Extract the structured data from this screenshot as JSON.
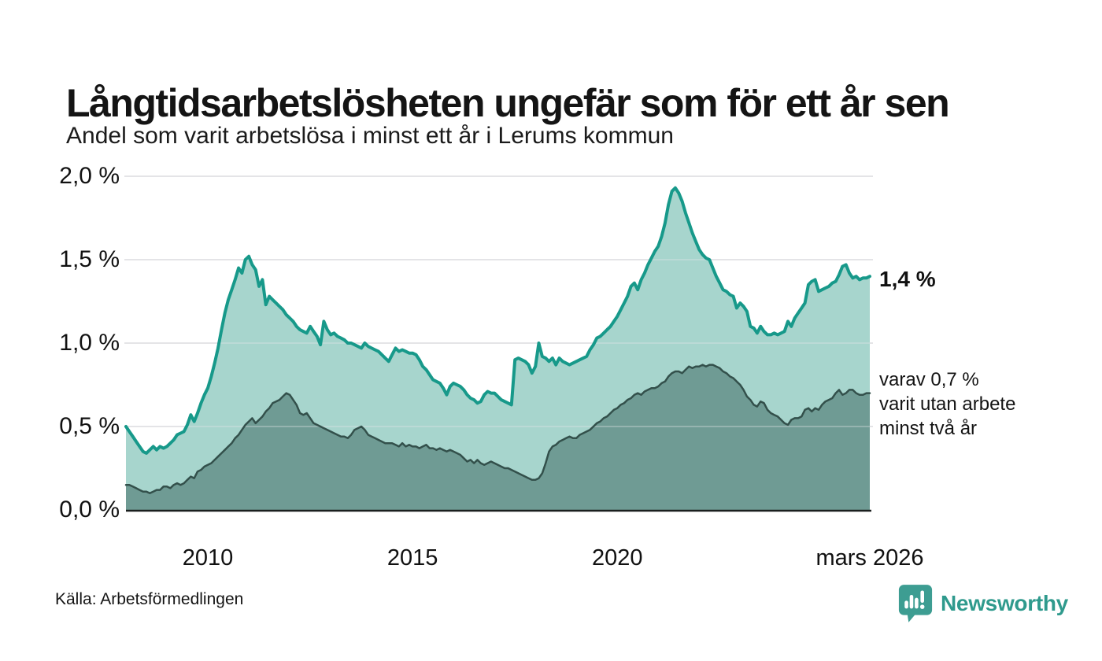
{
  "header": {
    "title": "Långtidsarbetslösheten ungefär som för ett år sen",
    "subtitle": "Andel som varit arbetslösa i minst ett år i Lerums kommun"
  },
  "footer": {
    "source": "Källa: Arbetsförmedlingen",
    "brand": "Newsworthy"
  },
  "colors": {
    "series1_line": "#17998a",
    "series1_fill": "#a7d5cd",
    "series2_line": "#33504b",
    "series2_fill": "#6f9b94",
    "gridline": "#e4e4e7",
    "axis_line": "#1a1f1e",
    "brand_teal": "#3d9d92"
  },
  "chart_data": {
    "type": "area",
    "title": "Långtidsarbetslösheten ungefär som för ett år sen",
    "subtitle": "Andel som varit arbetslösa i minst ett år i Lerums kommun",
    "xlabel": "",
    "ylabel": "",
    "x_unit": "månad",
    "x_range": [
      2008.0,
      2026.1667
    ],
    "ylim": [
      0,
      2.0
    ],
    "grid": "horizontal",
    "legend_position": "right-annotations",
    "y_ticks": [
      {
        "label": "2,0 %",
        "value": 2.0
      },
      {
        "label": "1,5 %",
        "value": 1.5
      },
      {
        "label": "1,0 %",
        "value": 1.0
      },
      {
        "label": "0,5 %",
        "value": 0.5
      },
      {
        "label": "0,0 %",
        "value": 0.0
      }
    ],
    "x_ticks": [
      {
        "label": "2010",
        "t": 2010.0
      },
      {
        "label": "2015",
        "t": 2015.0
      },
      {
        "label": "2020",
        "t": 2020.0
      },
      {
        "label": "mars 2026",
        "t": 2026.1667
      }
    ],
    "series": [
      {
        "name": "Andel som varit arbetslösa i minst ett år",
        "color": "#17998a",
        "fill": "#a7d5cd",
        "stroke_width": 4,
        "last_value_label": "1,4 %",
        "values": [
          0.5,
          0.47,
          0.44,
          0.41,
          0.38,
          0.35,
          0.34,
          0.36,
          0.38,
          0.36,
          0.38,
          0.37,
          0.38,
          0.4,
          0.42,
          0.45,
          0.46,
          0.47,
          0.51,
          0.57,
          0.53,
          0.58,
          0.64,
          0.69,
          0.73,
          0.8,
          0.88,
          0.97,
          1.08,
          1.18,
          1.26,
          1.32,
          1.38,
          1.45,
          1.42,
          1.5,
          1.52,
          1.47,
          1.44,
          1.34,
          1.38,
          1.23,
          1.28,
          1.26,
          1.24,
          1.22,
          1.2,
          1.17,
          1.15,
          1.13,
          1.1,
          1.08,
          1.07,
          1.06,
          1.1,
          1.07,
          1.04,
          0.99,
          1.13,
          1.08,
          1.05,
          1.06,
          1.04,
          1.03,
          1.02,
          1.0,
          1.0,
          0.99,
          0.98,
          0.97,
          1.0,
          0.98,
          0.97,
          0.96,
          0.95,
          0.93,
          0.91,
          0.89,
          0.93,
          0.97,
          0.95,
          0.96,
          0.95,
          0.94,
          0.94,
          0.93,
          0.9,
          0.86,
          0.84,
          0.81,
          0.78,
          0.77,
          0.76,
          0.73,
          0.69,
          0.74,
          0.76,
          0.75,
          0.74,
          0.72,
          0.69,
          0.67,
          0.66,
          0.64,
          0.65,
          0.69,
          0.71,
          0.7,
          0.7,
          0.68,
          0.66,
          0.65,
          0.64,
          0.63,
          0.9,
          0.91,
          0.9,
          0.89,
          0.87,
          0.82,
          0.86,
          1.0,
          0.92,
          0.91,
          0.89,
          0.91,
          0.87,
          0.91,
          0.89,
          0.88,
          0.87,
          0.88,
          0.89,
          0.9,
          0.91,
          0.92,
          0.96,
          0.99,
          1.03,
          1.04,
          1.06,
          1.08,
          1.1,
          1.13,
          1.16,
          1.2,
          1.24,
          1.28,
          1.34,
          1.36,
          1.32,
          1.38,
          1.42,
          1.47,
          1.51,
          1.55,
          1.58,
          1.64,
          1.72,
          1.83,
          1.91,
          1.93,
          1.9,
          1.85,
          1.78,
          1.72,
          1.66,
          1.61,
          1.56,
          1.53,
          1.51,
          1.5,
          1.45,
          1.4,
          1.36,
          1.32,
          1.31,
          1.29,
          1.28,
          1.21,
          1.24,
          1.22,
          1.19,
          1.1,
          1.09,
          1.06,
          1.1,
          1.07,
          1.05,
          1.05,
          1.06,
          1.05,
          1.06,
          1.07,
          1.13,
          1.1,
          1.15,
          1.18,
          1.21,
          1.24,
          1.35,
          1.37,
          1.38,
          1.31,
          1.32,
          1.33,
          1.34,
          1.36,
          1.37,
          1.41,
          1.46,
          1.47,
          1.42,
          1.39,
          1.4,
          1.38,
          1.39,
          1.39,
          1.4
        ]
      },
      {
        "name": "varav utan arbete minst två år",
        "color": "#33504b",
        "fill": "#6f9b94",
        "stroke_width": 2.5,
        "last_value_label": "0,7 %",
        "values": [
          0.15,
          0.15,
          0.14,
          0.13,
          0.12,
          0.11,
          0.11,
          0.1,
          0.11,
          0.12,
          0.12,
          0.14,
          0.14,
          0.13,
          0.15,
          0.16,
          0.15,
          0.16,
          0.18,
          0.2,
          0.19,
          0.23,
          0.24,
          0.26,
          0.27,
          0.28,
          0.3,
          0.32,
          0.34,
          0.36,
          0.38,
          0.4,
          0.43,
          0.45,
          0.48,
          0.51,
          0.53,
          0.55,
          0.52,
          0.54,
          0.56,
          0.59,
          0.61,
          0.64,
          0.65,
          0.66,
          0.68,
          0.7,
          0.69,
          0.66,
          0.63,
          0.58,
          0.57,
          0.58,
          0.55,
          0.52,
          0.51,
          0.5,
          0.49,
          0.48,
          0.47,
          0.46,
          0.45,
          0.44,
          0.44,
          0.43,
          0.45,
          0.48,
          0.49,
          0.5,
          0.48,
          0.45,
          0.44,
          0.43,
          0.42,
          0.41,
          0.4,
          0.4,
          0.4,
          0.39,
          0.38,
          0.4,
          0.38,
          0.39,
          0.38,
          0.38,
          0.37,
          0.38,
          0.39,
          0.37,
          0.37,
          0.36,
          0.37,
          0.36,
          0.35,
          0.36,
          0.35,
          0.34,
          0.33,
          0.31,
          0.29,
          0.3,
          0.28,
          0.3,
          0.28,
          0.27,
          0.28,
          0.29,
          0.28,
          0.27,
          0.26,
          0.25,
          0.25,
          0.24,
          0.23,
          0.22,
          0.21,
          0.2,
          0.19,
          0.18,
          0.18,
          0.19,
          0.22,
          0.28,
          0.35,
          0.38,
          0.39,
          0.41,
          0.42,
          0.43,
          0.44,
          0.43,
          0.43,
          0.45,
          0.46,
          0.47,
          0.48,
          0.5,
          0.52,
          0.53,
          0.55,
          0.56,
          0.58,
          0.6,
          0.61,
          0.63,
          0.64,
          0.66,
          0.67,
          0.69,
          0.7,
          0.69,
          0.71,
          0.72,
          0.73,
          0.73,
          0.74,
          0.76,
          0.77,
          0.8,
          0.82,
          0.83,
          0.83,
          0.82,
          0.84,
          0.86,
          0.85,
          0.86,
          0.86,
          0.87,
          0.86,
          0.87,
          0.87,
          0.86,
          0.85,
          0.83,
          0.82,
          0.8,
          0.79,
          0.77,
          0.75,
          0.72,
          0.68,
          0.66,
          0.63,
          0.62,
          0.65,
          0.64,
          0.6,
          0.58,
          0.57,
          0.56,
          0.54,
          0.52,
          0.51,
          0.54,
          0.55,
          0.55,
          0.56,
          0.6,
          0.61,
          0.59,
          0.61,
          0.6,
          0.63,
          0.65,
          0.66,
          0.67,
          0.7,
          0.72,
          0.69,
          0.7,
          0.72,
          0.72,
          0.7,
          0.69,
          0.69,
          0.7,
          0.7
        ]
      }
    ],
    "annotations": {
      "end_label": "1,4 %",
      "sub_label_line1": "varav 0,7 %",
      "sub_label_line2": "varit utan arbete",
      "sub_label_line3": "minst två år"
    }
  }
}
